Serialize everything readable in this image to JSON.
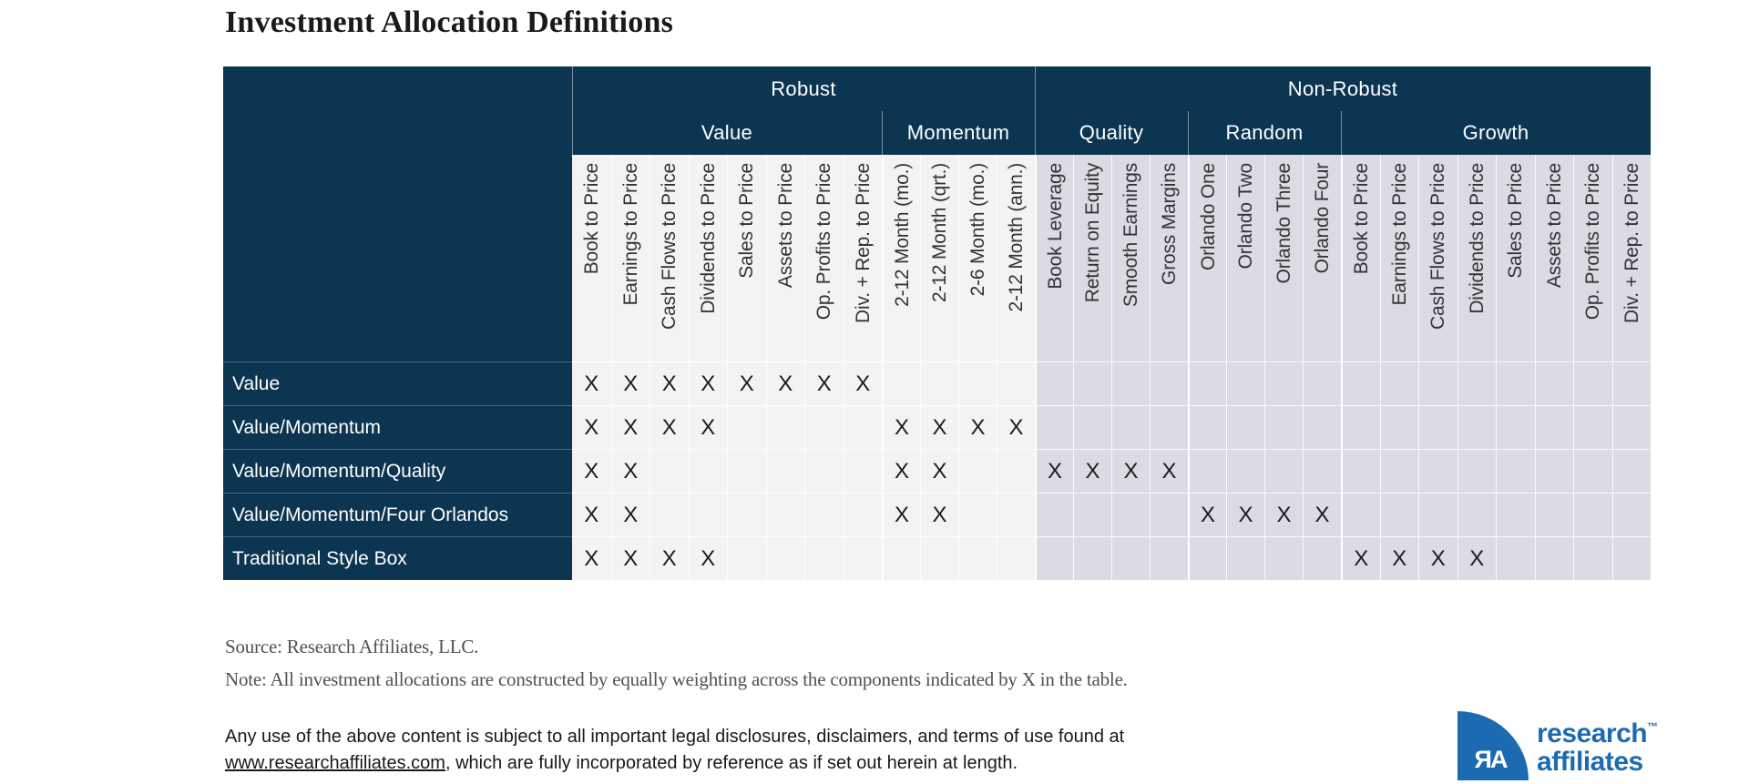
{
  "page": {
    "title": "Investment Allocation Definitions"
  },
  "chart_data": {
    "type": "table",
    "title": "Investment Allocation Definitions",
    "mark": "X",
    "groups": [
      {
        "label": "Robust",
        "sections": [
          {
            "label": "Value",
            "columns": [
              "Book to Price",
              "Earnings to Price",
              "Cash Flows to Price",
              "Dividends to Price",
              "Sales to Price",
              "Assets to Price",
              "Op. Profits to Price",
              "Div. + Rep. to Price"
            ]
          },
          {
            "label": "Momentum",
            "columns": [
              "2-12 Month (mo.)",
              "2-12 Month (qrt.)",
              "2-6 Month (mo.)",
              "2-12 Month (ann.)"
            ]
          }
        ]
      },
      {
        "label": "Non-Robust",
        "sections": [
          {
            "label": "Quality",
            "columns": [
              "Book Leverage",
              "Return on Equity",
              "Smooth Earnings",
              "Gross Margins"
            ]
          },
          {
            "label": "Random",
            "columns": [
              "Orlando One",
              "Orlando Two",
              "Orlando Three",
              "Orlando Four"
            ]
          },
          {
            "label": "Growth",
            "columns": [
              "Book to Price",
              "Earnings to Price",
              "Cash Flows to Price",
              "Dividends to Price",
              "Sales to Price",
              "Assets to Price",
              "Op. Profits to Price",
              "Div. + Rep. to Price"
            ]
          }
        ]
      }
    ],
    "rows": [
      {
        "label": "Value",
        "marked_columns": [
          0,
          1,
          2,
          3,
          4,
          5,
          6,
          7
        ]
      },
      {
        "label": "Value/Momentum",
        "marked_columns": [
          0,
          1,
          2,
          3,
          8,
          9,
          10,
          11
        ]
      },
      {
        "label": "Value/Momentum/Quality",
        "marked_columns": [
          0,
          1,
          8,
          9,
          12,
          13,
          14,
          15
        ]
      },
      {
        "label": "Value/Momentum/Four Orlandos",
        "marked_columns": [
          0,
          1,
          8,
          9,
          16,
          17,
          18,
          19
        ]
      },
      {
        "label": "Traditional Style Box",
        "marked_columns": [
          0,
          1,
          2,
          3,
          20,
          21,
          22,
          23
        ]
      }
    ]
  },
  "footnotes": {
    "source": "Source: Research Affiliates, LLC.",
    "note": "Note: All investment allocations are constructed by equally weighting across the components indicated by X in the table."
  },
  "legal": {
    "line1": "Any use of the above content is subject to all important legal disclosures, disclaimers, and terms of use found at",
    "link": "www.researchaffiliates.com",
    "after_link": ", which are fully incorporated by reference as if set out herein at length."
  },
  "logo": {
    "monogram": "ЯA",
    "word1": "research",
    "trademark": "™",
    "word2": "affiliates"
  },
  "colors": {
    "navy": "#0c3551",
    "robust_column_bg": "#f3f3f4",
    "nonrobust_column_bg": "#dadbe3",
    "brand_blue": "#1c6bb2"
  }
}
